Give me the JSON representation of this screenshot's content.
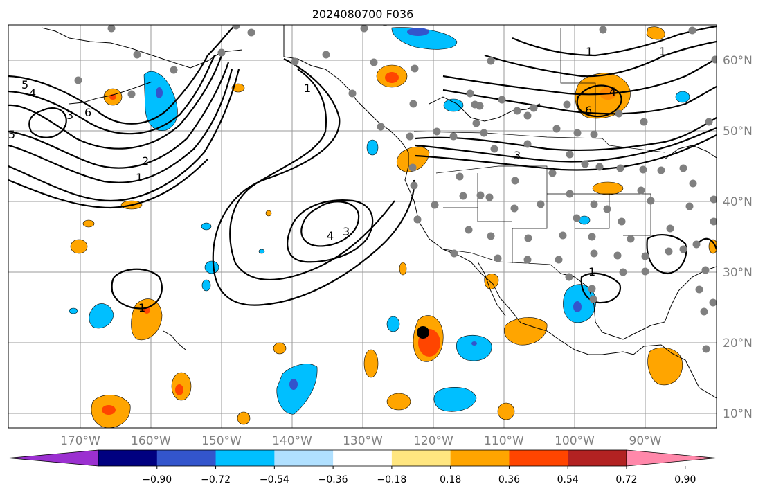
{
  "title": "2024080700 F036",
  "lat_labels": [
    "60°N",
    "50°N",
    "40°N",
    "30°N",
    "20°N",
    "10°N"
  ],
  "lon_labels": [
    "170°W",
    "160°W",
    "150°W",
    "140°W",
    "130°W",
    "120°W",
    "110°W",
    "100°W",
    "90°W"
  ],
  "colorbar": {
    "ticks": [
      "−0.90",
      "−0.72",
      "−0.54",
      "−0.36",
      "−0.18",
      "0.18",
      "0.36",
      "0.54",
      "0.72",
      "0.90"
    ],
    "colors": [
      "#9b30d0",
      "#000080",
      "#3355cc",
      "#00bfff",
      "#b0e0ff",
      "#ffffff",
      "#ffe680",
      "#ffa500",
      "#ff4500",
      "#b22222",
      "#ff88aa"
    ]
  },
  "contour_labels": [
    "5",
    "4",
    "3",
    "6",
    "2",
    "1",
    "1",
    "4",
    "3",
    "1",
    "1",
    "3",
    "4",
    "6",
    "1",
    "1",
    "5"
  ],
  "colors": {
    "grid": "#9a9a9a",
    "station": "#808080",
    "axis_label": "#808080"
  }
}
